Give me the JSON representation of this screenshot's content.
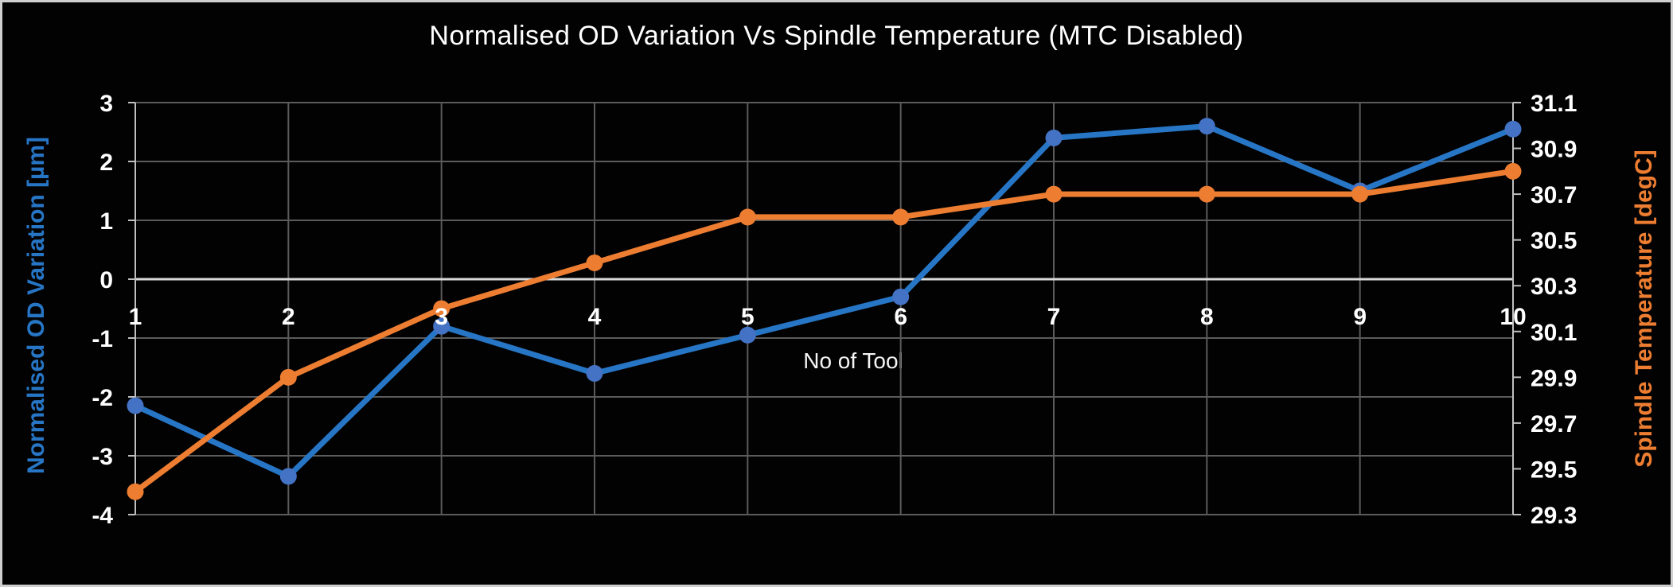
{
  "chart_data": {
    "type": "line",
    "title": "Normalised OD Variation Vs Spindle Temperature (MTC Disabled)",
    "categories": [
      1,
      2,
      3,
      4,
      5,
      6,
      7,
      8,
      9,
      10
    ],
    "x_axis": {
      "title": "No of Tool",
      "tick_labels": [
        "1",
        "2",
        "3",
        "4",
        "5",
        "6",
        "7",
        "8",
        "9",
        "10"
      ]
    },
    "left_axis": {
      "title": "Normalised OD Variation [µm]",
      "min": -4,
      "max": 3,
      "step": 1,
      "tick_labels": [
        "3",
        "2",
        "1",
        "0",
        "-1",
        "-2",
        "-3",
        "-4"
      ],
      "title_color": "#2776C6"
    },
    "right_axis": {
      "title": "Spindle Temperature [degC]",
      "min": 29.3,
      "max": 31.1,
      "step": 0.2,
      "tick_labels": [
        "31.1",
        "30.9",
        "30.7",
        "30.5",
        "30.3",
        "30.1",
        "29.9",
        "29.7",
        "29.5",
        "29.3"
      ],
      "title_color": "#ED7D31"
    },
    "series": [
      {
        "name": "Normalised OD Variation [µm]",
        "axis": "left",
        "line_color": "#2776C6",
        "marker_color": "#4472C4",
        "values": [
          -2.15,
          -3.35,
          -0.8,
          -1.6,
          -0.95,
          -0.3,
          2.4,
          2.6,
          1.5,
          2.55
        ]
      },
      {
        "name": "Spindle Temperature [degC]",
        "axis": "right",
        "line_color": "#ED7D31",
        "marker_color": "#ED7D31",
        "values": [
          29.4,
          29.9,
          30.2,
          30.4,
          30.6,
          30.6,
          30.7,
          30.7,
          30.7,
          30.8
        ]
      }
    ],
    "grid": true,
    "legend": "none",
    "background": "#020202",
    "gridline_color": "#5B5B5B",
    "zero_line_color": "#D9D9D9",
    "axis_line_color": "#BFBFBF",
    "tick_label_color": "#FFFFFF"
  }
}
